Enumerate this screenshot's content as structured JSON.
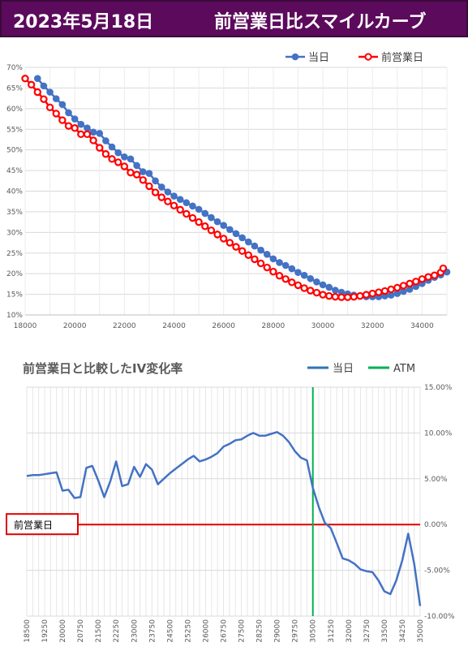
{
  "header": {
    "date": "2023年5月18日",
    "title": "前営業日比スマイルカーブ"
  },
  "colors": {
    "header_bg": "#5c0a5c",
    "today": "#4472c4",
    "prev": "#ff0000",
    "atm": "#00b050",
    "zero_line": "#e00000"
  },
  "callout": {
    "label": "前営業日"
  },
  "chart_data": [
    {
      "type": "line",
      "xlim": [
        18000,
        35000
      ],
      "ylim": [
        0.1,
        0.7
      ],
      "x_ticks": [
        "18000",
        "20000",
        "22000",
        "24000",
        "26000",
        "28000",
        "30000",
        "32000",
        "34000"
      ],
      "y_ticks": [
        "10%",
        "15%",
        "20%",
        "25%",
        "30%",
        "35%",
        "40%",
        "45%",
        "50%",
        "55%",
        "60%",
        "65%",
        "70%"
      ],
      "legend_position": "top",
      "series": [
        {
          "name": "当日",
          "x": [
            18500,
            18750,
            19000,
            19250,
            19500,
            19750,
            20000,
            20250,
            20500,
            20750,
            21000,
            21250,
            21500,
            21750,
            22000,
            22250,
            22500,
            22750,
            23000,
            23250,
            23500,
            23750,
            24000,
            24250,
            24500,
            24750,
            25000,
            25250,
            25500,
            25750,
            26000,
            26250,
            26500,
            26750,
            27000,
            27250,
            27500,
            27750,
            28000,
            28250,
            28500,
            28750,
            29000,
            29250,
            29500,
            29750,
            30000,
            30250,
            30500,
            30750,
            31000,
            31250,
            31500,
            31750,
            32000,
            32250,
            32500,
            32750,
            33000,
            33250,
            33500,
            33750,
            34000,
            34250,
            34500,
            34750,
            35000
          ],
          "y": [
            0.673,
            0.655,
            0.64,
            0.624,
            0.61,
            0.59,
            0.575,
            0.562,
            0.553,
            0.543,
            0.54,
            0.522,
            0.507,
            0.493,
            0.483,
            0.478,
            0.462,
            0.447,
            0.443,
            0.425,
            0.41,
            0.398,
            0.388,
            0.38,
            0.372,
            0.364,
            0.356,
            0.346,
            0.336,
            0.326,
            0.317,
            0.307,
            0.297,
            0.287,
            0.277,
            0.267,
            0.257,
            0.247,
            0.236,
            0.227,
            0.22,
            0.212,
            0.203,
            0.196,
            0.188,
            0.18,
            0.173,
            0.167,
            0.16,
            0.155,
            0.151,
            0.148,
            0.146,
            0.144,
            0.144,
            0.144,
            0.146,
            0.148,
            0.152,
            0.157,
            0.162,
            0.169,
            0.176,
            0.184,
            0.191,
            0.197,
            0.204
          ]
        },
        {
          "name": "前営業日",
          "x": [
            18000,
            18250,
            18500,
            18750,
            19000,
            19250,
            19500,
            19750,
            20000,
            20250,
            20500,
            20750,
            21000,
            21250,
            21500,
            21750,
            22000,
            22250,
            22500,
            22750,
            23000,
            23250,
            23500,
            23750,
            24000,
            24250,
            24500,
            24750,
            25000,
            25250,
            25500,
            25750,
            26000,
            26250,
            26500,
            26750,
            27000,
            27250,
            27500,
            27750,
            28000,
            28250,
            28500,
            28750,
            29000,
            29250,
            29500,
            29750,
            30000,
            30250,
            30500,
            30750,
            31000,
            31250,
            31500,
            31750,
            32000,
            32250,
            32500,
            32750,
            33000,
            33250,
            33500,
            33750,
            34000,
            34250,
            34500,
            34750,
            34850
          ],
          "y": [
            0.673,
            0.658,
            0.64,
            0.623,
            0.603,
            0.588,
            0.572,
            0.558,
            0.553,
            0.538,
            0.538,
            0.523,
            0.505,
            0.49,
            0.478,
            0.47,
            0.46,
            0.445,
            0.44,
            0.427,
            0.412,
            0.397,
            0.385,
            0.375,
            0.365,
            0.355,
            0.345,
            0.335,
            0.325,
            0.315,
            0.305,
            0.295,
            0.285,
            0.275,
            0.265,
            0.255,
            0.245,
            0.235,
            0.225,
            0.215,
            0.205,
            0.195,
            0.187,
            0.179,
            0.172,
            0.165,
            0.159,
            0.154,
            0.149,
            0.146,
            0.144,
            0.143,
            0.143,
            0.144,
            0.146,
            0.149,
            0.152,
            0.155,
            0.158,
            0.162,
            0.166,
            0.171,
            0.176,
            0.181,
            0.187,
            0.192,
            0.196,
            0.203,
            0.213
          ]
        }
      ]
    },
    {
      "type": "line",
      "title": "前営業日と比較したIV変化率",
      "ylim": [
        -0.1,
        0.15
      ],
      "y_ticks": [
        "15.00%",
        "10.00%",
        "5.00%",
        "0.00%",
        "-5.00%",
        "-10.00%"
      ],
      "x_ticks": [
        "18500",
        "19250",
        "20000",
        "20750",
        "21500",
        "22250",
        "23000",
        "23750",
        "24500",
        "25250",
        "26000",
        "26750",
        "27500",
        "28250",
        "29000",
        "29750",
        "30500",
        "31250",
        "32000",
        "32750",
        "33500",
        "34250",
        "35000"
      ],
      "legend_position": "top-right",
      "atm_x": 30500,
      "series": [
        {
          "name": "当日",
          "x": [
            18500,
            18750,
            19000,
            19250,
            19500,
            19750,
            20000,
            20250,
            20500,
            20750,
            21000,
            21250,
            21500,
            21750,
            22000,
            22250,
            22500,
            22750,
            23000,
            23250,
            23500,
            23750,
            24000,
            24250,
            24500,
            24750,
            25000,
            25250,
            25500,
            25750,
            26000,
            26250,
            26500,
            26750,
            27000,
            27250,
            27500,
            27750,
            28000,
            28250,
            28500,
            28750,
            29000,
            29250,
            29500,
            29750,
            30000,
            30250,
            30500,
            30750,
            31000,
            31250,
            31500,
            31750,
            32000,
            32250,
            32500,
            32750,
            33000,
            33250,
            33500,
            33750,
            34000,
            34250,
            34500,
            34750
          ],
          "y": [
            0.053,
            0.054,
            0.054,
            0.055,
            0.056,
            0.057,
            0.037,
            0.038,
            0.029,
            0.03,
            0.062,
            0.064,
            0.048,
            0.03,
            0.047,
            0.069,
            0.042,
            0.044,
            0.063,
            0.052,
            0.066,
            0.06,
            0.044,
            0.05,
            0.056,
            0.061,
            0.066,
            0.071,
            0.075,
            0.069,
            0.071,
            0.074,
            0.078,
            0.085,
            0.088,
            0.092,
            0.093,
            0.097,
            0.1,
            0.097,
            0.097,
            0.099,
            0.101,
            0.097,
            0.09,
            0.08,
            0.073,
            0.07,
            0.04,
            0.019,
            0.002,
            -0.004,
            -0.02,
            -0.037,
            -0.039,
            -0.043,
            -0.049,
            -0.051,
            -0.052,
            -0.061,
            -0.073,
            -0.076,
            -0.061,
            -0.039,
            -0.01,
            -0.043
          ]
        }
      ],
      "extra_point": {
        "x": 35000,
        "y": -0.089
      }
    }
  ],
  "legend2": {
    "today": "当日",
    "atm": "ATM"
  }
}
